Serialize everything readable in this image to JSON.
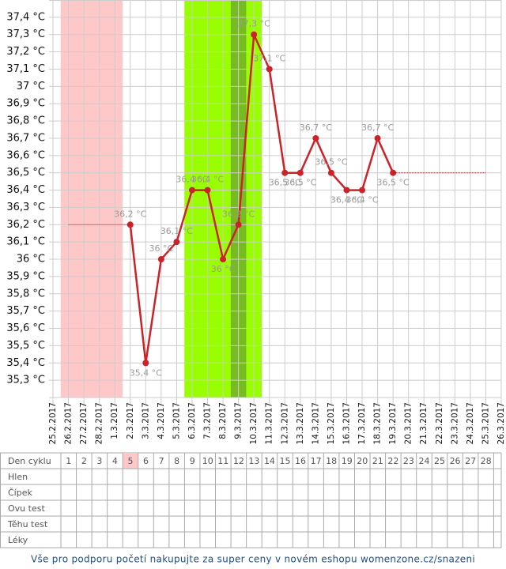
{
  "chart_data": {
    "type": "line",
    "categories": [
      "25.2.2017",
      "26.2.2017",
      "27.2.2017",
      "28.2.2017",
      "1.3.2017",
      "2.3.2017",
      "3.3.2017",
      "4.3.2017",
      "5.3.2017",
      "6.3.2017",
      "7.3.2017",
      "8.3.2017",
      "9.3.2017",
      "10.3.2017",
      "11.3.2017",
      "12.3.2017",
      "13.3.2017",
      "14.3.2017",
      "15.3.2017",
      "16.3.2017",
      "17.3.2017",
      "18.3.2017",
      "19.3.2017",
      "20.3.2017",
      "21.3.2017",
      "22.3.2017",
      "23.3.2017",
      "24.3.2017",
      "25.3.2017",
      "26.3.2017"
    ],
    "series": [
      {
        "color": "#cc2229",
        "style": "solid",
        "values": [
          null,
          null,
          null,
          null,
          null,
          36.2,
          35.4,
          36,
          36.1,
          36.4,
          36.4,
          36,
          36.2,
          37.3,
          37.1,
          36.5,
          36.5,
          36.7,
          36.5,
          36.4,
          36.4,
          36.7,
          36.5,
          null,
          null,
          null,
          null,
          null,
          null,
          null
        ],
        "value_labels": [
          null,
          null,
          null,
          null,
          null,
          "36,2 °C",
          "35,4 °C",
          "36 °C",
          "36,1 °C",
          "36,4 °C",
          "36,4 °C",
          "36 °C",
          "36,2 °C",
          "37,3 °C",
          "37,1 °C",
          "36,5 °C",
          "36,5 °C",
          "36,7 °C",
          "36,5 °C",
          "36,4 °C",
          "36,4 °C",
          "36,7 °C",
          "36,5 °C",
          null,
          null,
          null,
          null,
          null,
          null,
          null
        ]
      },
      {
        "color": "#aa1111",
        "style": "dotted",
        "values": [
          null,
          36.2,
          36.2,
          36.2,
          36.2,
          36.2,
          null,
          null,
          null,
          null,
          null,
          null,
          null,
          null,
          null,
          null,
          null,
          null,
          null,
          null,
          null,
          null,
          null,
          null,
          null,
          null,
          null,
          null,
          null,
          null
        ]
      },
      {
        "color": "#aa1111",
        "style": "dotted",
        "values": [
          null,
          null,
          null,
          null,
          null,
          null,
          null,
          null,
          null,
          null,
          null,
          null,
          null,
          null,
          null,
          null,
          null,
          null,
          null,
          null,
          null,
          null,
          36.5,
          36.5,
          36.5,
          36.5,
          36.5,
          36.5,
          36.5,
          null
        ]
      }
    ],
    "bands": [
      {
        "from": "26.2.2017",
        "to": "1.3.2017",
        "color": "#ffc8c8"
      },
      {
        "from": "6.3.2017",
        "to": "10.3.2017",
        "color": "#99ff00"
      },
      {
        "from": "9.3.2017",
        "to": "9.3.2017",
        "color": "#77bb22"
      }
    ],
    "ylim": [
      35.2,
      37.5
    ],
    "yticks": [
      {
        "value": 35.3,
        "label": "35,3 °C"
      },
      {
        "value": 35.4,
        "label": "35,4 °C"
      },
      {
        "value": 35.5,
        "label": "35,5 °C"
      },
      {
        "value": 35.6,
        "label": "35,6 °C"
      },
      {
        "value": 35.7,
        "label": "35,7 °C"
      },
      {
        "value": 35.8,
        "label": "35,8 °C"
      },
      {
        "value": 35.9,
        "label": "35,9 °C"
      },
      {
        "value": 36,
        "label": "36 °C"
      },
      {
        "value": 36.1,
        "label": "36,1 °C"
      },
      {
        "value": 36.2,
        "label": "36,2 °C"
      },
      {
        "value": 36.3,
        "label": "36,3 °C"
      },
      {
        "value": 36.4,
        "label": "36,4 °C"
      },
      {
        "value": 36.5,
        "label": "36,5 °C"
      },
      {
        "value": 36.6,
        "label": "36,6 °C"
      },
      {
        "value": 36.7,
        "label": "36,7 °C"
      },
      {
        "value": 36.8,
        "label": "36,8 °C"
      },
      {
        "value": 36.9,
        "label": "36,9 °C"
      },
      {
        "value": 37,
        "label": "37 °C"
      },
      {
        "value": 37.1,
        "label": "37,1 °C"
      },
      {
        "value": 37.2,
        "label": "37,2 °C"
      },
      {
        "value": 37.3,
        "label": "37,3 °C"
      },
      {
        "value": 37.4,
        "label": "37,4 °C"
      }
    ],
    "grid": true
  },
  "cycle_table": {
    "label": "Den cyklu",
    "days": [
      1,
      2,
      3,
      4,
      5,
      6,
      7,
      8,
      9,
      10,
      11,
      12,
      13,
      14,
      15,
      16,
      17,
      18,
      19,
      20,
      21,
      22,
      23,
      24,
      25,
      26,
      27,
      28
    ],
    "highlight_day": 5,
    "rows": [
      "Hlen",
      "Čípek",
      "Ovu test",
      "Těhu test",
      "Léky"
    ]
  },
  "footer": "Vše pro podporu početí nakupujte za super ceny v novém eshopu womenzone.cz/snazeni"
}
